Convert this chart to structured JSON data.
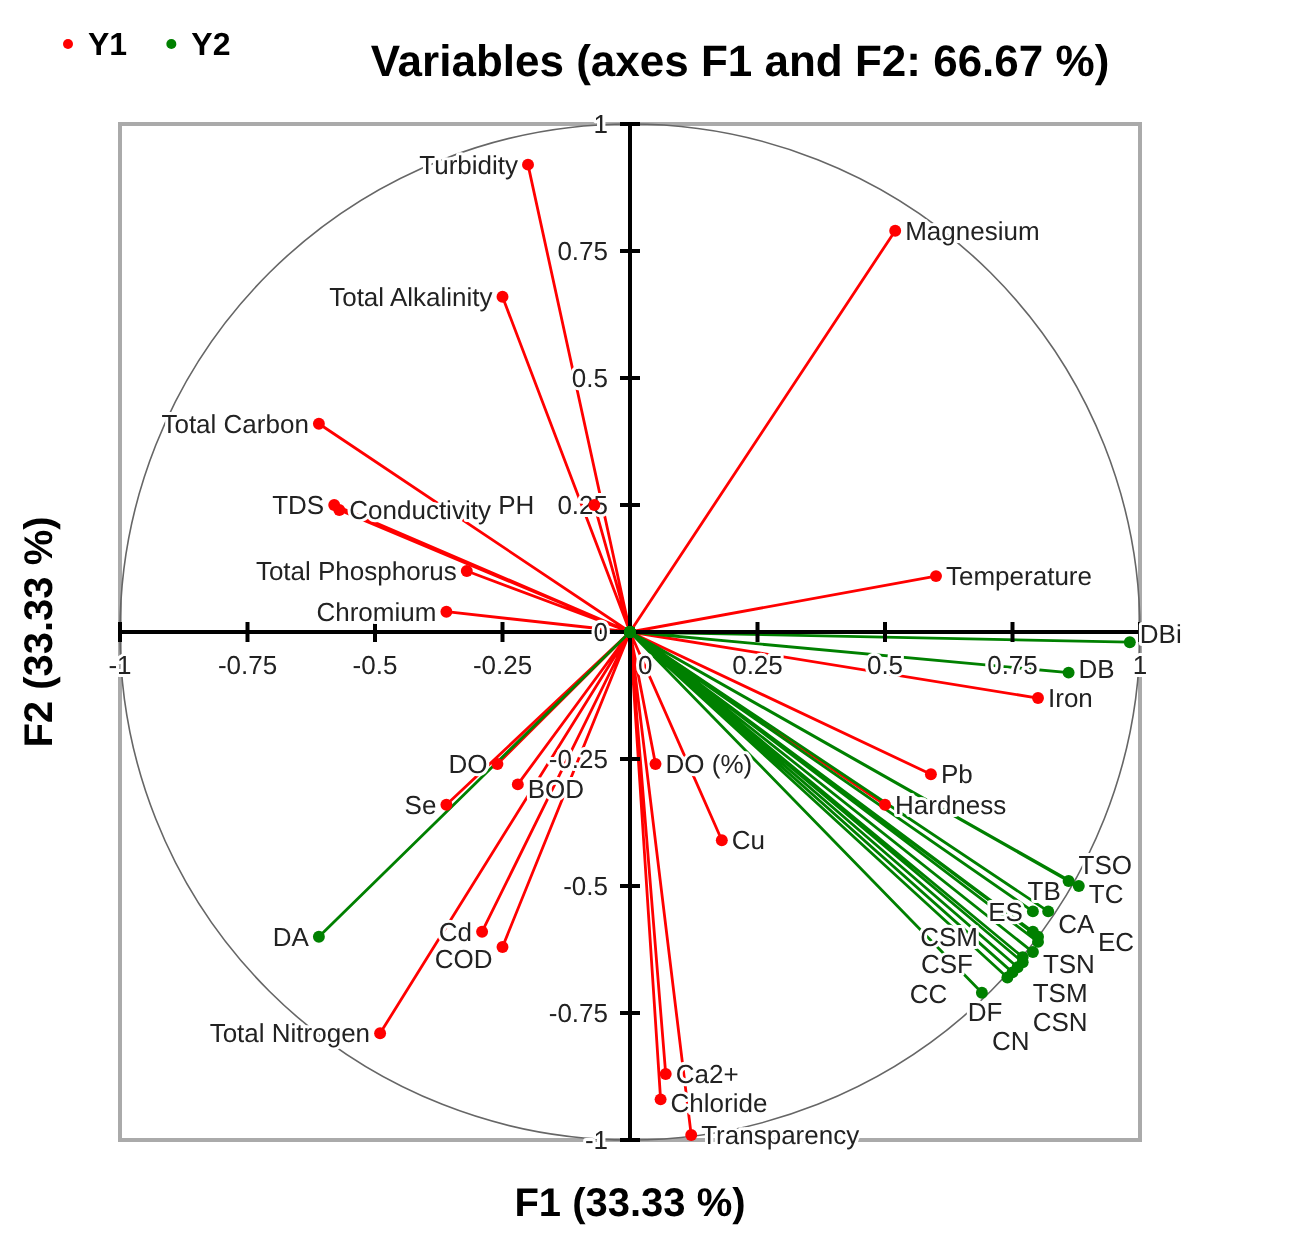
{
  "chart_data": {
    "type": "line",
    "title": "Variables (axes F1 and F2: 66.67 %)",
    "xlabel": "F1 (33.33 %)",
    "ylabel": "F2 (33.33 %)",
    "xlim": [
      -1,
      1
    ],
    "ylim": [
      -1,
      1
    ],
    "xticks": [
      -1,
      -0.75,
      -0.5,
      -0.25,
      0,
      0.25,
      0.5,
      0.75,
      1
    ],
    "yticks": [
      -1,
      -0.75,
      -0.5,
      -0.25,
      0,
      0.25,
      0.5,
      0.75,
      1
    ],
    "grid": false,
    "legend": "top left",
    "marker": "circle",
    "series": [
      {
        "name": "Y1",
        "color": "#ff0000",
        "x": [
          0,
          -0.2,
          0,
          -0.25,
          0,
          -0.61,
          0,
          -0.58,
          0,
          -0.57,
          0,
          -0.32,
          0,
          -0.36,
          0,
          -0.07,
          0,
          0.52,
          0,
          0.6,
          0,
          0.8,
          0,
          0.59,
          0,
          0.5,
          0,
          0.05,
          0,
          0.18,
          0,
          0.07,
          0,
          0.06,
          0,
          0.12,
          0,
          -0.26,
          0,
          -0.22,
          0,
          -0.36,
          0,
          -0.29,
          0,
          -0.25,
          0,
          -0.49
        ],
        "values": [
          0,
          0.92,
          0,
          0.66,
          0,
          0.41,
          0,
          0.25,
          0,
          0.24,
          0,
          0.12,
          0,
          0.04,
          0,
          0.25,
          0,
          0.79,
          0,
          0.11,
          0,
          -0.13,
          0,
          -0.28,
          0,
          -0.34,
          0,
          -0.26,
          0,
          -0.41,
          0,
          -0.87,
          0,
          -0.92,
          0,
          -0.99,
          0,
          -0.26,
          0,
          -0.3,
          0,
          -0.34,
          0,
          -0.59,
          0,
          -0.62,
          0,
          -0.79
        ]
      },
      {
        "name": "Y2",
        "color": "#008000",
        "x": [
          0,
          -0.61,
          0,
          0.98,
          0,
          0.86,
          0,
          0.86,
          0,
          0.88,
          0,
          0.79,
          0,
          0.82,
          0,
          0.79,
          0,
          0.8,
          0,
          0.8,
          0,
          0.77,
          0,
          0.79,
          0,
          0.77,
          0,
          0.75,
          0,
          0.74,
          0,
          0.76,
          0,
          0.69
        ],
        "values": [
          0,
          -0.6,
          0,
          -0.02,
          0,
          -0.08,
          0,
          -0.49,
          0,
          -0.5,
          0,
          -0.55,
          0,
          -0.55,
          0,
          -0.59,
          0,
          -0.61,
          0,
          -0.6,
          0,
          -0.64,
          0,
          -0.63,
          0,
          -0.65,
          0,
          -0.67,
          0,
          -0.68,
          0,
          -0.66,
          0,
          -0.71
        ]
      }
    ],
    "annotations": [
      {
        "text": "Turbidity",
        "x": -0.2,
        "y": 0.92
      },
      {
        "text": "Total Alkalinity",
        "x": -0.25,
        "y": 0.66
      },
      {
        "text": "Total Carbon",
        "x": -0.61,
        "y": 0.41
      },
      {
        "text": "TDS",
        "x": -0.58,
        "y": 0.25
      },
      {
        "text": "Conductivity",
        "x": -0.57,
        "y": 0.24
      },
      {
        "text": "Total Phosphorus",
        "x": -0.32,
        "y": 0.12
      },
      {
        "text": "Chromium",
        "x": -0.36,
        "y": 0.04
      },
      {
        "text": "PH",
        "x": -0.07,
        "y": 0.25
      },
      {
        "text": "Magnesium",
        "x": 0.52,
        "y": 0.79
      },
      {
        "text": "Temperature",
        "x": 0.6,
        "y": 0.11
      },
      {
        "text": "Iron",
        "x": 0.8,
        "y": -0.13
      },
      {
        "text": "Pb",
        "x": 0.59,
        "y": -0.28
      },
      {
        "text": "Hardness",
        "x": 0.5,
        "y": -0.34
      },
      {
        "text": "DO (%)",
        "x": 0.05,
        "y": -0.26
      },
      {
        "text": "Cu",
        "x": 0.18,
        "y": -0.41
      },
      {
        "text": "Ca2+",
        "x": 0.07,
        "y": -0.87
      },
      {
        "text": "Chloride",
        "x": 0.06,
        "y": -0.92
      },
      {
        "text": "Transparency",
        "x": 0.12,
        "y": -0.99
      },
      {
        "text": "DO",
        "x": -0.26,
        "y": -0.26
      },
      {
        "text": "BOD",
        "x": -0.22,
        "y": -0.3
      },
      {
        "text": "Se",
        "x": -0.36,
        "y": -0.34
      },
      {
        "text": "Cd",
        "x": -0.29,
        "y": -0.59
      },
      {
        "text": "COD",
        "x": -0.25,
        "y": -0.62
      },
      {
        "text": "Total Nitrogen",
        "x": -0.49,
        "y": -0.79
      },
      {
        "text": "DA",
        "x": -0.61,
        "y": -0.6
      },
      {
        "text": "DBi",
        "x": 0.98,
        "y": -0.02
      },
      {
        "text": "DB",
        "x": 0.86,
        "y": -0.08
      },
      {
        "text": "TSO",
        "x": 0.86,
        "y": -0.49
      },
      {
        "text": "TC",
        "x": 0.88,
        "y": -0.5
      },
      {
        "text": "ES",
        "x": 0.79,
        "y": -0.55
      },
      {
        "text": "CA",
        "x": 0.82,
        "y": -0.55
      },
      {
        "text": "TSN",
        "x": 0.79,
        "y": -0.59
      },
      {
        "text": "EC",
        "x": 0.8,
        "y": -0.61
      },
      {
        "text": "CSM",
        "x": 0.8,
        "y": -0.6
      },
      {
        "text": "TSM",
        "x": 0.77,
        "y": -0.64
      },
      {
        "text": "CSF",
        "x": 0.79,
        "y": -0.63
      },
      {
        "text": "CSN",
        "x": 0.77,
        "y": -0.65
      },
      {
        "text": "DF",
        "x": 0.75,
        "y": -0.67
      },
      {
        "text": "CC",
        "x": 0.74,
        "y": -0.68
      },
      {
        "text": "TB",
        "x": 0.76,
        "y": -0.66
      },
      {
        "text": "CN",
        "x": 0.69,
        "y": -0.71
      }
    ]
  }
}
